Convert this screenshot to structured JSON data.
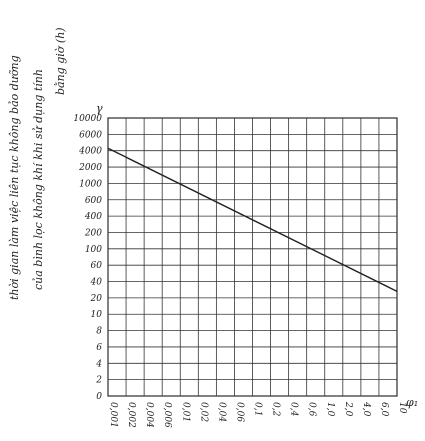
{
  "chart_data": {
    "type": "line",
    "y_label_lines": [
      "thời gian làm việc liên tục không bảo dưỡng",
      "của bình lọc không khí khi sử dụng tính",
      "bằng giờ (h)"
    ],
    "y_symbol": "γ",
    "x_symbol": "φ₁",
    "x": [
      0.001,
      10
    ],
    "series": [
      {
        "color": "#222",
        "values": [
          4300,
          28
        ]
      }
    ],
    "xlim": [
      0.001,
      10
    ],
    "xticks": [
      {
        "value": 0.001,
        "label": "0,001"
      },
      {
        "value": 0.002,
        "label": "0,002"
      },
      {
        "value": 0.004,
        "label": "0,004"
      },
      {
        "value": 0.006,
        "label": "0,006"
      },
      {
        "value": 0.01,
        "label": "0,01"
      },
      {
        "value": 0.02,
        "label": "0,02"
      },
      {
        "value": 0.04,
        "label": "0,04"
      },
      {
        "value": 0.06,
        "label": "0,06"
      },
      {
        "value": 0.1,
        "label": "0,1"
      },
      {
        "value": 0.2,
        "label": "0,2"
      },
      {
        "value": 0.4,
        "label": "0,4"
      },
      {
        "value": 0.6,
        "label": "0,6"
      },
      {
        "value": 1,
        "label": "1,0"
      },
      {
        "value": 2,
        "label": "2,0"
      },
      {
        "value": 4,
        "label": "4,0"
      },
      {
        "value": 6,
        "label": "6,0"
      },
      10
    ],
    "ylim": [
      0,
      10000
    ],
    "yticks": [
      0,
      2,
      4,
      6,
      8,
      10,
      20,
      40,
      60,
      100,
      200,
      400,
      600,
      1000,
      2000,
      4000,
      6000,
      10000
    ],
    "grid": true
  }
}
